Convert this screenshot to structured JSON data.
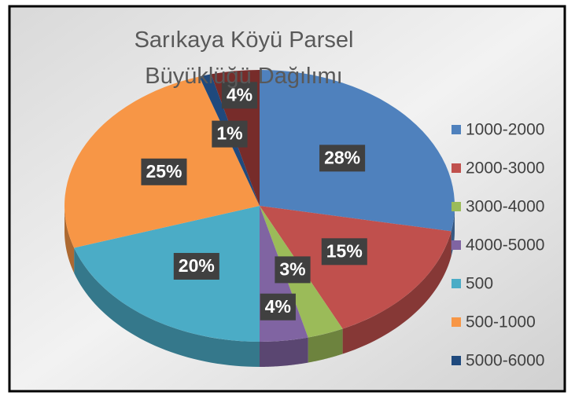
{
  "chart_data": {
    "type": "pie3d",
    "title": "Sarıkaya Köyü Parsel Büyüklüğü Dağılımı",
    "categories": [
      "1000-2000",
      "2000-3000",
      "3000-4000",
      "4000-5000",
      "500",
      "500-1000",
      "5000-6000",
      null
    ],
    "values": [
      28,
      15,
      3,
      4,
      20,
      25,
      1,
      4
    ],
    "value_labels": [
      "28%",
      "15%",
      "3%",
      "4%",
      "20%",
      "25%",
      "1%",
      "4%"
    ],
    "colors": [
      "#4f81bd",
      "#c0504d",
      "#9bbb59",
      "#8064a2",
      "#4bacc6",
      "#f79646",
      "#1f497d",
      "#772c2a"
    ],
    "legend": "right"
  }
}
